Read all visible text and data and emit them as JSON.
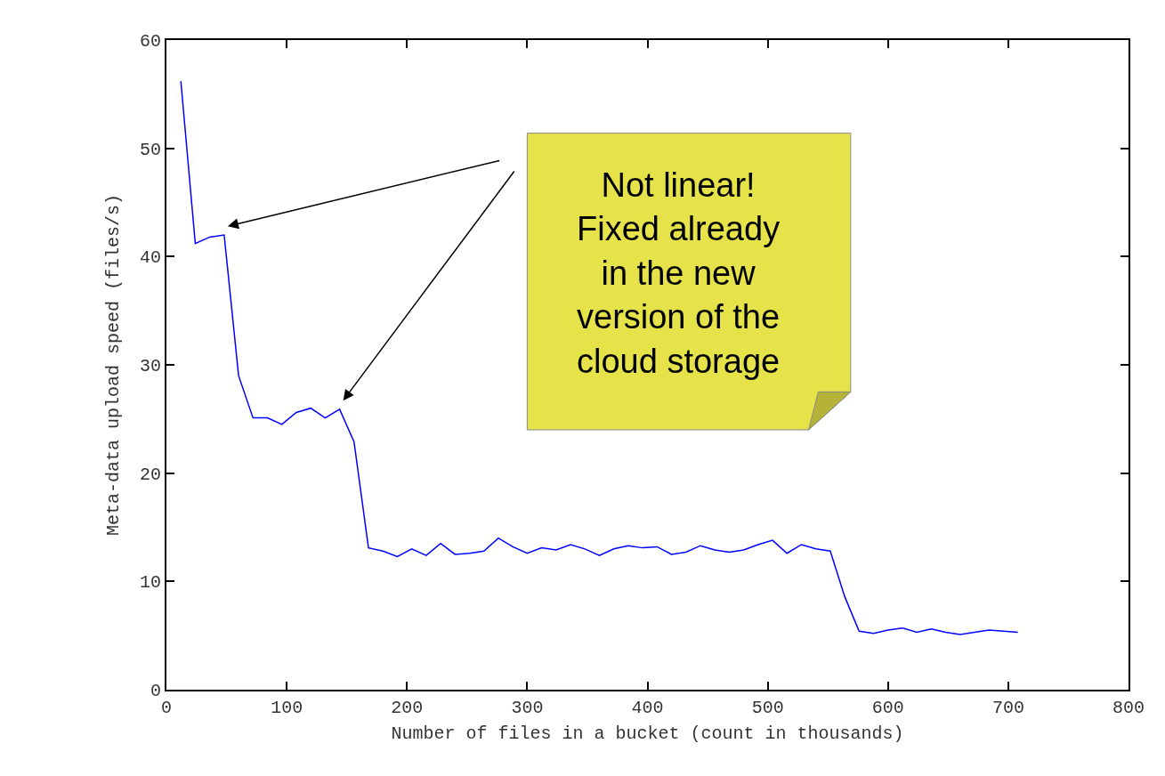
{
  "chart_data": {
    "type": "line",
    "xlabel": "Number of files in a bucket (count in thousands)",
    "ylabel": "Meta-data upload speed (files/s)",
    "x": [
      12,
      24,
      36,
      48,
      60,
      72,
      84,
      96,
      108,
      120,
      132,
      144,
      156,
      168,
      180,
      192,
      204,
      216,
      228,
      240,
      252,
      264,
      276,
      288,
      300,
      312,
      324,
      336,
      348,
      360,
      372,
      384,
      396,
      408,
      420,
      432,
      444,
      456,
      468,
      480,
      492,
      504,
      516,
      528,
      540,
      552,
      564,
      576,
      588,
      600,
      612,
      624,
      636,
      648,
      660,
      672,
      684,
      696,
      708
    ],
    "series": [
      {
        "color": "#0000ff",
        "values": [
          56.2,
          41.2,
          41.8,
          42.0,
          29.0,
          25.1,
          25.1,
          24.5,
          25.6,
          26.0,
          25.1,
          25.9,
          22.9,
          13.1,
          12.8,
          12.3,
          13.0,
          12.4,
          13.5,
          12.5,
          12.6,
          12.8,
          14.0,
          13.2,
          12.6,
          13.1,
          12.9,
          13.4,
          13.0,
          12.4,
          13.0,
          13.3,
          13.1,
          13.2,
          12.5,
          12.7,
          13.3,
          12.9,
          12.7,
          12.9,
          13.4,
          13.8,
          12.6,
          13.4,
          13.0,
          12.8,
          8.6,
          5.4,
          5.2,
          5.5,
          5.7,
          5.3,
          5.6,
          5.3,
          5.1,
          5.3,
          5.5,
          5.4,
          5.3
        ]
      }
    ],
    "xlim": [
      0,
      800
    ],
    "xticks": [
      0,
      100,
      200,
      300,
      400,
      500,
      600,
      700,
      800
    ],
    "ylim": [
      0,
      60
    ],
    "yticks": [
      0,
      10,
      20,
      30,
      40,
      50,
      60
    ],
    "legend": false,
    "marker": "none",
    "line_style": "solid",
    "annotations": [
      "Not linear!\nFixed already\nin the new\nversion of the\ncloud storage"
    ]
  }
}
